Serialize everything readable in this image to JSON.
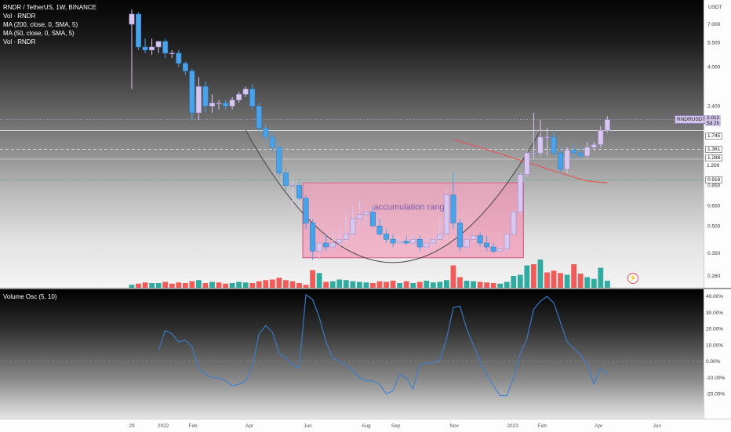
{
  "header": {
    "symbol_line": "RNDR / TetherUS, 1W, BINANCE",
    "indicators": [
      "Vol · RNDR",
      "MA (200, close, 0, SMA, 5)",
      "MA (50, close, 0, SMA, 5)",
      "Vol · RNDR"
    ]
  },
  "oscillator": {
    "legend": "Volume Osc (5, 10)"
  },
  "price_axis": {
    "currency": "USDT",
    "ticks": [
      "7.000",
      "5.500",
      "4.000",
      "2.400",
      "1.361",
      "1.288",
      "1.200",
      "0.916",
      "0.850",
      "0.650",
      "0.500",
      "0.350",
      "0.260"
    ]
  },
  "osc_axis": {
    "ticks": [
      "40.00%",
      "30.00%",
      "20.00%",
      "10.00%",
      "0.00%",
      "-10.00%",
      "-20.00%"
    ]
  },
  "time_axis": {
    "ticks": [
      "29",
      "2022",
      "Feb",
      "Apr",
      "Jun",
      "Aug",
      "Sep",
      "Nov",
      "2023",
      "Feb",
      "Apr",
      "Jun"
    ]
  },
  "price_tags": {
    "symbol": "RNDRUSDT",
    "last": "2.012",
    "countdown": "5d 2h",
    "level_1": "1.745",
    "level_2": "1.361",
    "level_3": "1.288",
    "level_4": "1.200",
    "level_5": "0.916"
  },
  "annotations": {
    "range_label": "accumulation range"
  },
  "colors": {
    "bull": "#d8c8f0",
    "bear": "#4aa3e8",
    "vol_up": "#26a69a",
    "vol_down": "#ef5350",
    "osc_line": "#3a7fd0",
    "ma_line": "#e05a5a",
    "range_fill": "#f48fb1"
  },
  "chart_data": [
    {
      "type": "candlestick",
      "title": "RNDR / TetherUS, 1W, BINANCE",
      "ylabel": "USDT",
      "y_scale": "log",
      "ylim": [
        0.22,
        9.0
      ],
      "x": [
        "2021-11-29",
        "2021-12-06",
        "2021-12-13",
        "2021-12-20",
        "2021-12-27",
        "2022-01-03",
        "2022-01-10",
        "2022-01-17",
        "2022-01-24",
        "2022-01-31",
        "2022-02-07",
        "2022-02-14",
        "2022-02-21",
        "2022-02-28",
        "2022-03-07",
        "2022-03-14",
        "2022-03-21",
        "2022-03-28",
        "2022-04-04",
        "2022-04-11",
        "2022-04-18",
        "2022-04-25",
        "2022-05-02",
        "2022-05-09",
        "2022-05-16",
        "2022-05-23",
        "2022-05-30",
        "2022-06-06",
        "2022-06-13",
        "2022-06-20",
        "2022-06-27",
        "2022-07-04",
        "2022-07-11",
        "2022-07-18",
        "2022-07-25",
        "2022-08-01",
        "2022-08-08",
        "2022-08-15",
        "2022-08-22",
        "2022-08-29",
        "2022-09-05",
        "2022-09-12",
        "2022-09-19",
        "2022-09-26",
        "2022-10-03",
        "2022-10-10",
        "2022-10-17",
        "2022-10-24",
        "2022-10-31",
        "2022-11-07",
        "2022-11-14",
        "2022-11-21",
        "2022-11-28",
        "2022-12-05",
        "2022-12-12",
        "2022-12-19",
        "2022-12-26",
        "2023-01-02",
        "2023-01-09",
        "2023-01-16",
        "2023-01-23",
        "2023-01-30",
        "2023-02-06",
        "2023-02-13",
        "2023-02-20",
        "2023-02-27",
        "2023-03-06",
        "2023-03-13",
        "2023-03-20",
        "2023-03-27",
        "2023-04-03",
        "2023-04-10"
      ],
      "open": [
        7.0,
        8.0,
        5.2,
        5.0,
        5.2,
        5.6,
        4.8,
        4.8,
        4.2,
        3.8,
        2.2,
        3.1,
        2.4,
        2.5,
        2.5,
        2.4,
        2.6,
        2.8,
        3.0,
        2.4,
        1.8,
        1.6,
        1.4,
        1.0,
        0.85,
        0.85,
        0.72,
        0.52,
        0.36,
        0.4,
        0.38,
        0.4,
        0.42,
        0.45,
        0.55,
        0.58,
        0.6,
        0.5,
        0.45,
        0.42,
        0.4,
        0.41,
        0.4,
        0.42,
        0.38,
        0.4,
        0.42,
        0.45,
        0.75,
        0.52,
        0.38,
        0.42,
        0.44,
        0.4,
        0.38,
        0.36,
        0.37,
        0.45,
        0.6,
        0.98,
        1.3,
        1.3,
        1.6,
        1.6,
        1.3,
        1.05,
        1.35,
        1.3,
        1.25,
        1.4,
        1.45,
        1.75
      ],
      "high": [
        8.5,
        8.2,
        5.8,
        5.8,
        5.6,
        5.8,
        5.0,
        5.0,
        4.3,
        3.9,
        3.5,
        3.3,
        2.8,
        2.6,
        2.6,
        2.7,
        2.9,
        3.1,
        3.2,
        2.5,
        1.9,
        1.7,
        1.5,
        1.05,
        0.9,
        0.9,
        0.75,
        0.55,
        0.4,
        0.45,
        0.48,
        0.5,
        0.6,
        0.65,
        0.7,
        0.62,
        0.65,
        0.55,
        0.48,
        0.45,
        0.44,
        0.44,
        0.45,
        0.44,
        0.42,
        0.44,
        0.55,
        0.8,
        1.0,
        0.55,
        0.44,
        0.46,
        0.46,
        0.44,
        0.4,
        0.39,
        0.4,
        0.62,
        1.0,
        1.35,
        2.2,
        2.0,
        1.8,
        1.75,
        1.4,
        1.4,
        1.45,
        1.42,
        1.5,
        1.5,
        1.85,
        2.1
      ],
      "low": [
        3.0,
        5.0,
        4.8,
        4.7,
        4.8,
        4.5,
        4.5,
        4.0,
        3.6,
        2.0,
        2.0,
        2.2,
        2.2,
        2.3,
        2.3,
        2.3,
        2.5,
        2.7,
        2.3,
        1.7,
        1.5,
        1.3,
        0.95,
        0.8,
        0.6,
        0.7,
        0.48,
        0.32,
        0.32,
        0.36,
        0.36,
        0.38,
        0.4,
        0.43,
        0.5,
        0.5,
        0.5,
        0.44,
        0.4,
        0.38,
        0.38,
        0.39,
        0.38,
        0.36,
        0.36,
        0.38,
        0.4,
        0.42,
        0.48,
        0.36,
        0.36,
        0.4,
        0.38,
        0.36,
        0.35,
        0.35,
        0.36,
        0.44,
        0.58,
        0.95,
        1.2,
        1.25,
        1.25,
        1.25,
        1.0,
        1.0,
        1.2,
        1.2,
        1.2,
        1.35,
        1.4,
        1.7
      ],
      "close": [
        8.0,
        5.2,
        5.0,
        5.2,
        5.6,
        4.8,
        4.8,
        4.2,
        3.8,
        2.2,
        3.1,
        2.4,
        2.5,
        2.5,
        2.4,
        2.6,
        2.8,
        3.0,
        2.4,
        1.8,
        1.6,
        1.4,
        1.0,
        0.85,
        0.85,
        0.72,
        0.52,
        0.36,
        0.4,
        0.38,
        0.4,
        0.42,
        0.45,
        0.55,
        0.58,
        0.6,
        0.5,
        0.45,
        0.42,
        0.4,
        0.41,
        0.4,
        0.42,
        0.38,
        0.4,
        0.42,
        0.45,
        0.75,
        0.52,
        0.38,
        0.42,
        0.44,
        0.4,
        0.38,
        0.36,
        0.37,
        0.45,
        0.6,
        0.98,
        1.3,
        1.3,
        1.6,
        1.6,
        1.3,
        1.05,
        1.35,
        1.3,
        1.25,
        1.4,
        1.45,
        1.75,
        2.012
      ]
    },
    {
      "type": "bar",
      "title": "Vol · RNDR",
      "x": [
        "2021-11-29",
        "2021-12-06",
        "2021-12-13",
        "2021-12-20",
        "2021-12-27",
        "2022-01-03",
        "2022-01-10",
        "2022-01-17",
        "2022-01-24",
        "2022-01-31",
        "2022-02-07",
        "2022-02-14",
        "2022-02-21",
        "2022-02-28",
        "2022-03-07",
        "2022-03-14",
        "2022-03-21",
        "2022-03-28",
        "2022-04-04",
        "2022-04-11",
        "2022-04-18",
        "2022-04-25",
        "2022-05-02",
        "2022-05-09",
        "2022-05-16",
        "2022-05-23",
        "2022-05-30",
        "2022-06-06",
        "2022-06-13",
        "2022-06-20",
        "2022-06-27",
        "2022-07-04",
        "2022-07-11",
        "2022-07-18",
        "2022-07-25",
        "2022-08-01",
        "2022-08-08",
        "2022-08-15",
        "2022-08-22",
        "2022-08-29",
        "2022-09-05",
        "2022-09-12",
        "2022-09-19",
        "2022-09-26",
        "2022-10-03",
        "2022-10-10",
        "2022-10-17",
        "2022-10-24",
        "2022-10-31",
        "2022-11-07",
        "2022-11-14",
        "2022-11-21",
        "2022-11-28",
        "2022-12-05",
        "2022-12-12",
        "2022-12-19",
        "2022-12-26",
        "2023-01-02",
        "2023-01-09",
        "2023-01-16",
        "2023-01-23",
        "2023-01-30",
        "2023-02-06",
        "2023-02-13",
        "2023-02-20",
        "2023-02-27",
        "2023-03-06",
        "2023-03-13",
        "2023-03-20",
        "2023-03-27",
        "2023-04-03",
        "2023-04-10"
      ],
      "values": [
        5,
        7,
        9,
        8,
        8,
        10,
        7,
        9,
        8,
        11,
        13,
        8,
        10,
        9,
        7,
        8,
        10,
        9,
        8,
        11,
        13,
        14,
        17,
        13,
        11,
        8,
        5,
        30,
        25,
        10,
        11,
        14,
        13,
        11,
        10,
        9,
        8,
        11,
        10,
        12,
        8,
        11,
        8,
        10,
        12,
        9,
        10,
        13,
        38,
        18,
        12,
        11,
        10,
        9,
        8,
        7,
        10,
        20,
        22,
        38,
        40,
        48,
        26,
        29,
        25,
        22,
        40,
        24,
        18,
        15,
        34,
        12
      ],
      "direction": [
        "up",
        "down",
        "down",
        "up",
        "up",
        "down",
        "down",
        "down",
        "down",
        "down",
        "up",
        "down",
        "up",
        "down",
        "down",
        "up",
        "up",
        "up",
        "down",
        "down",
        "down",
        "down",
        "down",
        "down",
        "down",
        "down",
        "down",
        "down",
        "up",
        "down",
        "up",
        "up",
        "up",
        "up",
        "up",
        "up",
        "down",
        "down",
        "down",
        "down",
        "up",
        "down",
        "up",
        "down",
        "up",
        "up",
        "up",
        "up",
        "down",
        "down",
        "up",
        "up",
        "down",
        "down",
        "down",
        "up",
        "up",
        "up",
        "up",
        "up",
        "down",
        "up",
        "down",
        "down",
        "down",
        "up",
        "down",
        "down",
        "up",
        "up",
        "up",
        "up"
      ]
    },
    {
      "type": "line",
      "title": "MA (50, close, 0, SMA, 5)",
      "x": [
        "2022-10-31",
        "2022-11-28",
        "2022-12-26",
        "2023-01-23",
        "2023-02-20",
        "2023-03-20",
        "2023-04-10"
      ],
      "values": [
        1.55,
        1.4,
        1.25,
        1.12,
        1.0,
        0.9,
        0.88
      ]
    },
    {
      "type": "line",
      "title": "Volume Osc (5, 10)",
      "ylim": [
        -20,
        40
      ],
      "x": [
        "2021-12-27",
        "2022-01-03",
        "2022-01-10",
        "2022-01-17",
        "2022-01-24",
        "2022-01-31",
        "2022-02-07",
        "2022-02-14",
        "2022-02-21",
        "2022-02-28",
        "2022-03-07",
        "2022-03-14",
        "2022-03-21",
        "2022-03-28",
        "2022-04-04",
        "2022-04-11",
        "2022-04-18",
        "2022-04-25",
        "2022-05-02",
        "2022-05-09",
        "2022-05-16",
        "2022-05-23",
        "2022-05-30",
        "2022-06-06",
        "2022-06-13",
        "2022-06-20",
        "2022-06-27",
        "2022-07-04",
        "2022-07-11",
        "2022-07-18",
        "2022-07-25",
        "2022-08-01",
        "2022-08-08",
        "2022-08-15",
        "2022-08-22",
        "2022-08-29",
        "2022-09-05",
        "2022-09-12",
        "2022-09-19",
        "2022-09-26",
        "2022-10-03",
        "2022-10-10",
        "2022-10-17",
        "2022-10-24",
        "2022-10-31",
        "2022-11-07",
        "2022-11-14",
        "2022-11-21",
        "2022-11-28",
        "2022-12-05",
        "2022-12-12",
        "2022-12-19",
        "2022-12-26",
        "2023-01-02",
        "2023-01-09",
        "2023-01-16",
        "2023-01-23",
        "2023-01-30",
        "2023-02-06",
        "2023-02-13",
        "2023-02-20",
        "2023-02-27",
        "2023-03-06",
        "2023-03-13",
        "2023-03-20",
        "2023-03-27",
        "2023-04-03",
        "2023-04-10"
      ],
      "values": [
        7,
        19,
        17,
        12,
        13,
        9,
        -4,
        -8,
        -10,
        -10,
        -12,
        -15,
        -14,
        -12,
        -3,
        17,
        22,
        18,
        5,
        2,
        -2,
        -4,
        41,
        38,
        27,
        12,
        2,
        0,
        -2,
        -6,
        -10,
        -12,
        -12,
        -14,
        -20,
        -18,
        -8,
        -10,
        -17,
        -2,
        -1,
        -1,
        1,
        14,
        33,
        34,
        20,
        10,
        0,
        -8,
        -15,
        -21,
        -21,
        -10,
        5,
        14,
        32,
        37,
        40,
        36,
        24,
        12,
        8,
        4,
        -2,
        -14,
        -4,
        -8
      ]
    }
  ]
}
